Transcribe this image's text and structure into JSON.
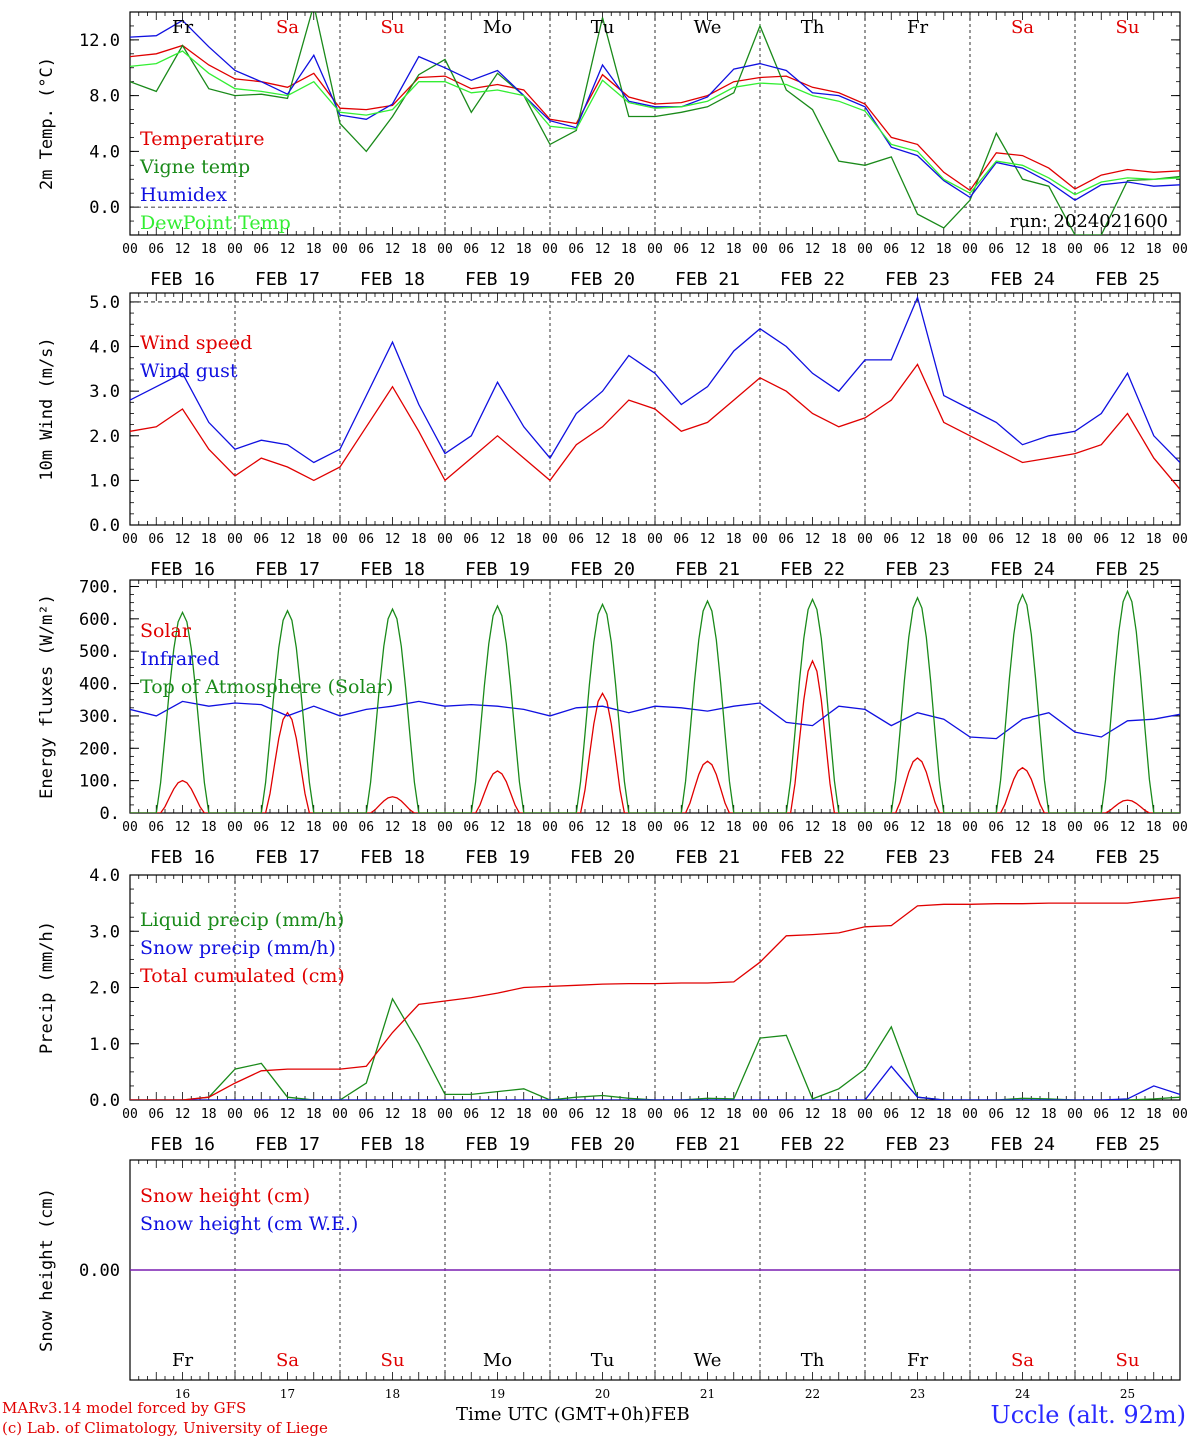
{
  "colors": {
    "red": "#e00000",
    "green": "#1a8a1a",
    "blue": "#1010e0",
    "lightgreen": "#33ee33",
    "purple": "#7a1fb0",
    "weekend": "#e00000"
  },
  "day_labels": [
    "Fr",
    "Sa",
    "Su",
    "Mo",
    "Tu",
    "We",
    "Th",
    "Fr",
    "Sa",
    "Su"
  ],
  "weekend_flags": [
    false,
    true,
    true,
    false,
    false,
    false,
    false,
    false,
    true,
    true
  ],
  "date_labels": [
    "FEB 16",
    "FEB 17",
    "FEB 18",
    "FEB 19",
    "FEB 20",
    "FEB 21",
    "FEB 22",
    "FEB 23",
    "FEB 24",
    "FEB 25"
  ],
  "hour_labels": [
    "00",
    "06",
    "12",
    "18"
  ],
  "hour_end_label": "00",
  "day_numbers": [
    "16",
    "17",
    "18",
    "19",
    "20",
    "21",
    "22",
    "23",
    "24",
    "25"
  ],
  "run_label": "run: 2024021600",
  "footer": {
    "credit_line1": "MARv3.14 model forced by GFS",
    "credit_line2": "(c) Lab. of Climatology, University of Liege",
    "time_label": "Time UTC (GMT+0h)",
    "month_label": "FEB",
    "station": "Uccle (alt. 92m)"
  },
  "chart_data": [
    {
      "type": "line",
      "ylabel": "2m Temp. (°C)",
      "ylim": [
        -2.0,
        14.0
      ],
      "yticks": [
        0.0,
        4.0,
        8.0,
        12.0
      ],
      "ytick_labels": [
        "0.0",
        "4.0",
        "8.0",
        "12.0"
      ],
      "dashed_lines": [
        0.0
      ],
      "x": [
        0,
        6,
        12,
        18,
        24,
        30,
        36,
        42,
        48,
        54,
        60,
        66,
        72,
        78,
        84,
        90,
        96,
        102,
        108,
        114,
        120,
        126,
        132,
        138,
        144,
        150,
        156,
        162,
        168,
        174,
        180,
        186,
        192,
        198,
        204,
        210,
        216,
        222,
        228,
        234,
        240
      ],
      "series": [
        {
          "name": "Temperature",
          "color": "red",
          "values": [
            10.8,
            11.0,
            11.6,
            10.2,
            9.2,
            9.0,
            8.6,
            9.6,
            7.1,
            7.0,
            7.3,
            9.3,
            9.4,
            8.5,
            8.8,
            8.4,
            6.3,
            6.0,
            9.5,
            7.9,
            7.4,
            7.5,
            8.0,
            9.0,
            9.3,
            9.4,
            8.6,
            8.2,
            7.4,
            5.0,
            4.5,
            2.5,
            1.2,
            3.9,
            3.7,
            2.8,
            1.3,
            2.3,
            2.7,
            2.5,
            2.6
          ]
        },
        {
          "name": "Vigne temp",
          "color": "green",
          "values": [
            9.0,
            8.3,
            11.6,
            8.5,
            8.0,
            8.1,
            7.8,
            14.5,
            6.0,
            4.0,
            6.5,
            9.5,
            10.6,
            6.8,
            9.6,
            8.0,
            4.5,
            5.5,
            13.6,
            6.5,
            6.5,
            6.8,
            7.2,
            8.2,
            13.0,
            8.4,
            7.0,
            3.3,
            3.0,
            3.6,
            -0.5,
            -1.5,
            0.5,
            5.3,
            2.0,
            1.5,
            -2.0,
            -2.0,
            1.9,
            2.0,
            2.2
          ]
        },
        {
          "name": "Humidex",
          "color": "blue",
          "values": [
            12.2,
            12.3,
            13.4,
            11.5,
            9.8,
            9.0,
            8.1,
            10.9,
            6.6,
            6.3,
            7.4,
            10.8,
            10.0,
            9.1,
            9.8,
            8.0,
            6.2,
            5.7,
            10.2,
            7.6,
            7.2,
            7.2,
            7.9,
            9.9,
            10.3,
            9.8,
            8.2,
            8.0,
            7.2,
            4.3,
            3.7,
            1.9,
            0.7,
            3.2,
            2.8,
            1.8,
            0.5,
            1.6,
            1.8,
            1.5,
            1.6
          ]
        },
        {
          "name": "DewPoint Temp",
          "color": "lightgreen",
          "values": [
            10.1,
            10.3,
            11.2,
            9.6,
            8.5,
            8.3,
            8.0,
            9.0,
            6.8,
            6.6,
            7.0,
            9.0,
            9.0,
            8.2,
            8.4,
            8.0,
            5.8,
            5.6,
            9.1,
            7.5,
            7.1,
            7.2,
            7.6,
            8.6,
            8.9,
            8.8,
            8.0,
            7.6,
            6.9,
            4.5,
            4.0,
            2.0,
            1.0,
            3.3,
            3.0,
            2.1,
            0.9,
            1.8,
            2.1,
            2.0,
            2.1
          ]
        }
      ]
    },
    {
      "type": "line",
      "ylabel": "10m Wind (m/s)",
      "ylim": [
        0.0,
        5.2
      ],
      "yticks": [
        0.0,
        1.0,
        2.0,
        3.0,
        4.0,
        5.0
      ],
      "ytick_labels": [
        "0.0",
        "1.0",
        "2.0",
        "3.0",
        "4.0",
        "5.0"
      ],
      "dashed_lines": [
        5.0
      ],
      "x": [
        0,
        6,
        12,
        18,
        24,
        30,
        36,
        42,
        48,
        54,
        60,
        66,
        72,
        78,
        84,
        90,
        96,
        102,
        108,
        114,
        120,
        126,
        132,
        138,
        144,
        150,
        156,
        162,
        168,
        174,
        180,
        186,
        192,
        198,
        204,
        210,
        216,
        222,
        228,
        234,
        240
      ],
      "series": [
        {
          "name": "Wind speed",
          "color": "red",
          "values": [
            2.1,
            2.2,
            2.6,
            1.7,
            1.1,
            1.5,
            1.3,
            1.0,
            1.3,
            2.2,
            3.1,
            2.1,
            1.0,
            1.5,
            2.0,
            1.5,
            1.0,
            1.8,
            2.2,
            2.8,
            2.6,
            2.1,
            2.3,
            2.8,
            3.3,
            3.0,
            2.5,
            2.2,
            2.4,
            2.8,
            3.6,
            2.3,
            2.0,
            1.7,
            1.4,
            1.5,
            1.6,
            1.8,
            2.5,
            1.5,
            0.8
          ]
        },
        {
          "name": "Wind gust",
          "color": "blue",
          "values": [
            2.8,
            3.1,
            3.4,
            2.3,
            1.7,
            1.9,
            1.8,
            1.4,
            1.7,
            2.9,
            4.1,
            2.7,
            1.6,
            2.0,
            3.2,
            2.2,
            1.5,
            2.5,
            3.0,
            3.8,
            3.4,
            2.7,
            3.1,
            3.9,
            4.4,
            4.0,
            3.4,
            3.0,
            3.7,
            3.7,
            5.1,
            2.9,
            2.6,
            2.3,
            1.8,
            2.0,
            2.1,
            2.5,
            3.4,
            2.0,
            1.4
          ]
        }
      ]
    },
    {
      "type": "line",
      "ylabel": "Energy fluxes (W/m²)",
      "ylim": [
        0,
        720
      ],
      "yticks": [
        0,
        100,
        200,
        300,
        400,
        500,
        600,
        700
      ],
      "ytick_labels": [
        "0.",
        "100.",
        "200.",
        "300.",
        "400.",
        "500.",
        "600.",
        "700."
      ],
      "dashed_lines": [],
      "series": [
        {
          "name": "Solar",
          "color": "red",
          "day_peaks": [
            100,
            310,
            50,
            130,
            370,
            160,
            470,
            170,
            140,
            40
          ]
        },
        {
          "name": "Infrared",
          "color": "blue",
          "x": [
            0,
            6,
            12,
            18,
            24,
            30,
            36,
            42,
            48,
            54,
            60,
            66,
            72,
            78,
            84,
            90,
            96,
            102,
            108,
            114,
            120,
            126,
            132,
            138,
            144,
            150,
            156,
            162,
            168,
            174,
            180,
            186,
            192,
            198,
            204,
            210,
            216,
            222,
            228,
            234,
            240
          ],
          "values": [
            320,
            300,
            345,
            330,
            340,
            335,
            300,
            330,
            300,
            320,
            330,
            345,
            330,
            335,
            330,
            320,
            300,
            325,
            330,
            310,
            330,
            325,
            315,
            330,
            340,
            280,
            270,
            330,
            320,
            270,
            310,
            290,
            235,
            230,
            290,
            310,
            250,
            235,
            285,
            290,
            305
          ]
        },
        {
          "name": "Top of Atmosphere (Solar)",
          "color": "green",
          "day_peaks": [
            620,
            625,
            630,
            640,
            645,
            655,
            660,
            665,
            675,
            685
          ]
        }
      ]
    },
    {
      "type": "line",
      "ylabel": "Precip (mm/h)",
      "ylim": [
        0.0,
        4.0
      ],
      "yticks": [
        0.0,
        1.0,
        2.0,
        3.0,
        4.0
      ],
      "ytick_labels": [
        "0.0",
        "1.0",
        "2.0",
        "3.0",
        "4.0"
      ],
      "dashed_lines": [],
      "x": [
        0,
        6,
        12,
        18,
        24,
        30,
        36,
        42,
        48,
        54,
        60,
        66,
        72,
        78,
        84,
        90,
        96,
        102,
        108,
        114,
        120,
        126,
        132,
        138,
        144,
        150,
        156,
        162,
        168,
        174,
        180,
        186,
        192,
        198,
        204,
        210,
        216,
        222,
        228,
        234,
        240
      ],
      "series": [
        {
          "name": "Liquid precip (mm/h)",
          "color": "green",
          "values": [
            0,
            0,
            0,
            0.05,
            0.55,
            0.65,
            0.05,
            0,
            0,
            0.3,
            1.8,
            1.0,
            0.1,
            0.1,
            0.15,
            0.2,
            0,
            0.05,
            0.08,
            0.03,
            0,
            0,
            0.03,
            0.02,
            1.1,
            1.15,
            0.02,
            0.2,
            0.55,
            1.3,
            0.05,
            0,
            0,
            0,
            0.03,
            0.02,
            0,
            0,
            0,
            0.02,
            0.05
          ]
        },
        {
          "name": "Snow precip (mm/h)",
          "color": "blue",
          "values": [
            0,
            0,
            0,
            0,
            0,
            0,
            0,
            0,
            0,
            0,
            0,
            0,
            0,
            0,
            0,
            0,
            0,
            0,
            0,
            0,
            0,
            0,
            0,
            0,
            0,
            0,
            0,
            0,
            0,
            0.6,
            0.05,
            0,
            0,
            0,
            0,
            0,
            0,
            0,
            0.02,
            0.25,
            0.1
          ]
        },
        {
          "name": "Total cumulated (cm)",
          "color": "red",
          "values": [
            0,
            0,
            0,
            0.05,
            0.3,
            0.52,
            0.55,
            0.55,
            0.55,
            0.6,
            1.2,
            1.7,
            1.76,
            1.82,
            1.9,
            2.0,
            2.02,
            2.04,
            2.06,
            2.07,
            2.07,
            2.08,
            2.08,
            2.1,
            2.45,
            2.92,
            2.94,
            2.97,
            3.08,
            3.1,
            3.45,
            3.48,
            3.48,
            3.49,
            3.49,
            3.5,
            3.5,
            3.5,
            3.5,
            3.55,
            3.6
          ]
        }
      ]
    },
    {
      "type": "line",
      "ylabel": "Snow height (cm)",
      "ylim": [
        -1.0,
        1.0
      ],
      "yticks": [
        0.0
      ],
      "ytick_labels": [
        "0.00"
      ],
      "dashed_lines": [],
      "x": [
        0,
        240
      ],
      "series": [
        {
          "name": "Snow height (cm)",
          "color": "red",
          "values": [
            0,
            0
          ]
        },
        {
          "name": "Snow height (cm W.E.)",
          "color": "blue",
          "values": [
            0,
            0
          ]
        }
      ],
      "combined_line_color": "purple"
    }
  ]
}
